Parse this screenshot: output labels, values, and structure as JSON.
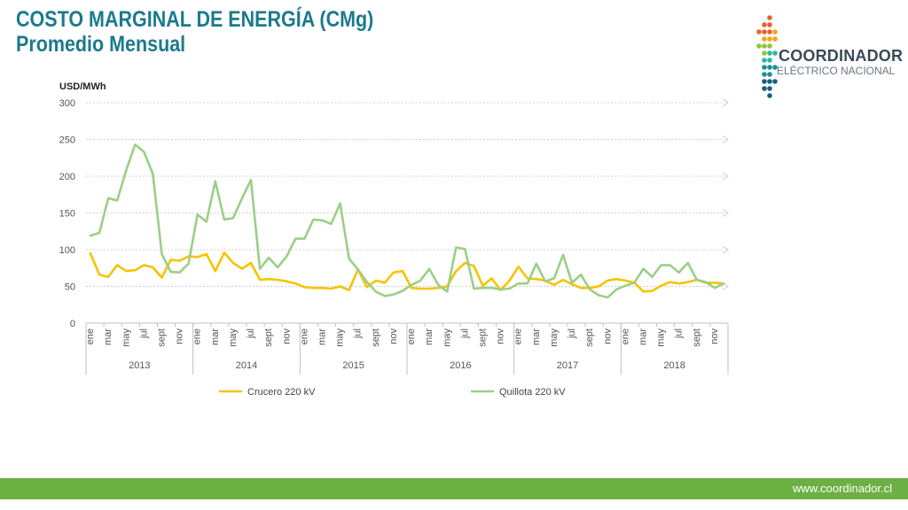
{
  "slide": {
    "title_line1": "COSTO MARGINAL DE ENERGÍA (CMg)",
    "title_line2": "Promedio Mensual",
    "logo_line1": "COORDINADOR",
    "logo_line2": "ELÉCTRICO NACIONAL",
    "footer_url": "www.coordinador.cl"
  },
  "colors": {
    "title": "#1b7a8c",
    "footer": "#6cb043",
    "crucero": "#f5c400",
    "quillota": "#9bcf86",
    "logo_dots": [
      "#e8602c",
      "#f4a21e",
      "#8cc63f",
      "#2eb7a0",
      "#1a8fa0",
      "#1b5f7a"
    ]
  },
  "chart_data": {
    "type": "line",
    "ylabel": "USD/MWh",
    "ylim": [
      0,
      300
    ],
    "yticks": [
      0,
      50,
      100,
      150,
      200,
      250,
      300
    ],
    "grid": true,
    "legend_position": "bottom",
    "month_tick_labels": [
      "ene",
      "mar",
      "may",
      "jul",
      "sept",
      "nov"
    ],
    "years": [
      "2013",
      "2014",
      "2015",
      "2016",
      "2017",
      "2018"
    ],
    "months_per_year": 12,
    "series": [
      {
        "name": "Crucero 220 kV",
        "color": "#f5c400",
        "values": [
          95,
          66,
          63,
          79,
          71,
          72,
          79,
          76,
          62,
          86,
          85,
          91,
          90,
          94,
          71,
          96,
          82,
          74,
          82,
          59,
          60,
          59,
          57,
          54,
          49,
          48,
          48,
          47,
          50,
          45,
          73,
          49,
          58,
          55,
          69,
          71,
          48,
          47,
          47,
          48,
          50,
          71,
          82,
          78,
          51,
          61,
          45,
          58,
          77,
          61,
          60,
          58,
          52,
          59,
          53,
          48,
          48,
          50,
          58,
          60,
          58,
          55,
          43,
          44,
          51,
          56,
          54,
          56,
          59,
          55,
          55,
          54
        ]
      },
      {
        "name": "Quillota 220 kV",
        "color": "#9bcf86",
        "values": [
          119,
          123,
          170,
          167,
          208,
          243,
          233,
          203,
          94,
          70,
          69,
          81,
          148,
          138,
          193,
          141,
          143,
          170,
          195,
          74,
          89,
          76,
          91,
          115,
          115,
          141,
          140,
          135,
          163,
          88,
          73,
          56,
          43,
          37,
          39,
          44,
          52,
          58,
          74,
          52,
          43,
          103,
          101,
          47,
          48,
          48,
          46,
          47,
          54,
          54,
          81,
          57,
          61,
          93,
          55,
          66,
          46,
          38,
          35,
          46,
          51,
          55,
          74,
          63,
          79,
          79,
          69,
          82,
          59,
          56,
          48,
          54
        ]
      }
    ]
  }
}
